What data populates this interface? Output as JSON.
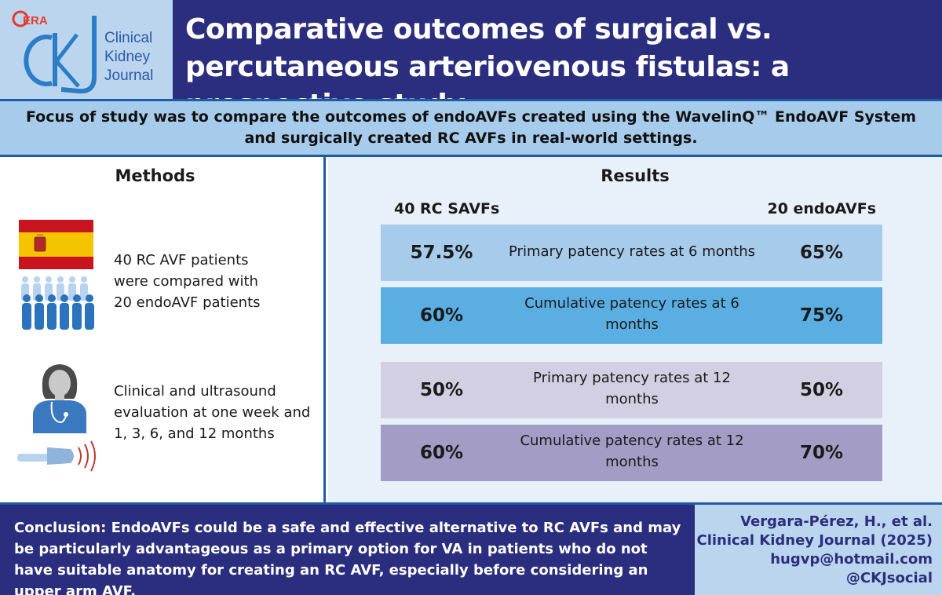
{
  "header": {
    "logo_badge": "ERA",
    "logo_lines": [
      "Clinical",
      "Kidney",
      "Journal"
    ],
    "title": "Comparative outcomes of surgical vs. percutaneous arteriovenous fistulas: a prospective study",
    "colors": {
      "header_bg": "#2b2e7e",
      "logo_bg": "#bcd5ee",
      "accent_line": "#1f5aa6"
    }
  },
  "focus": {
    "text": "Focus of study was to compare the outcomes of endoAVFs created using the WavelinQ™ EndoAVF System and surgically created RC AVFs in real-world settings."
  },
  "methods": {
    "title": "Methods",
    "icons": [
      "spain-flag-icon",
      "patient-group-icon",
      "nurse-icon",
      "ultrasound-probe-icon"
    ],
    "item1": "40 RC AVF patients were compared with 20 endoAVF patients",
    "item2": "Clinical and ultrasound evaluation at one week and 1, 3, 6, and 12 months"
  },
  "results": {
    "title": "Results",
    "left_header": "40 RC SAVFs",
    "right_header": "20 endoAVFs",
    "rows": [
      {
        "left": "57.5%",
        "label": "Primary patency rates at 6 months",
        "right": "65%",
        "color": "#a6cbeb"
      },
      {
        "left": "60%",
        "label": "Cumulative patency rates at 6 months",
        "right": "75%",
        "color": "#5aaee2"
      },
      {
        "left": "50%",
        "label": "Primary patency rates at 12 months",
        "right": "50%",
        "color": "#d2cfe2"
      },
      {
        "left": "60%",
        "label": "Cumulative patency rates at 12 months",
        "right": "70%",
        "color": "#a39cc4"
      }
    ]
  },
  "footer": {
    "conclusion": "Conclusion: EndoAVFs could be a safe and effective alternative to RC AVFs and may be particularly advantageous as a primary option for VA in patients who do not have suitable anatomy for creating an RC AVF, especially before considering an upper arm AVF.",
    "citation": [
      "Vergara-Pérez, H., et al.",
      "Clinical Kidney Journal (2025)",
      "hugvp@hotmail.com",
      "@CKJsocial"
    ]
  }
}
